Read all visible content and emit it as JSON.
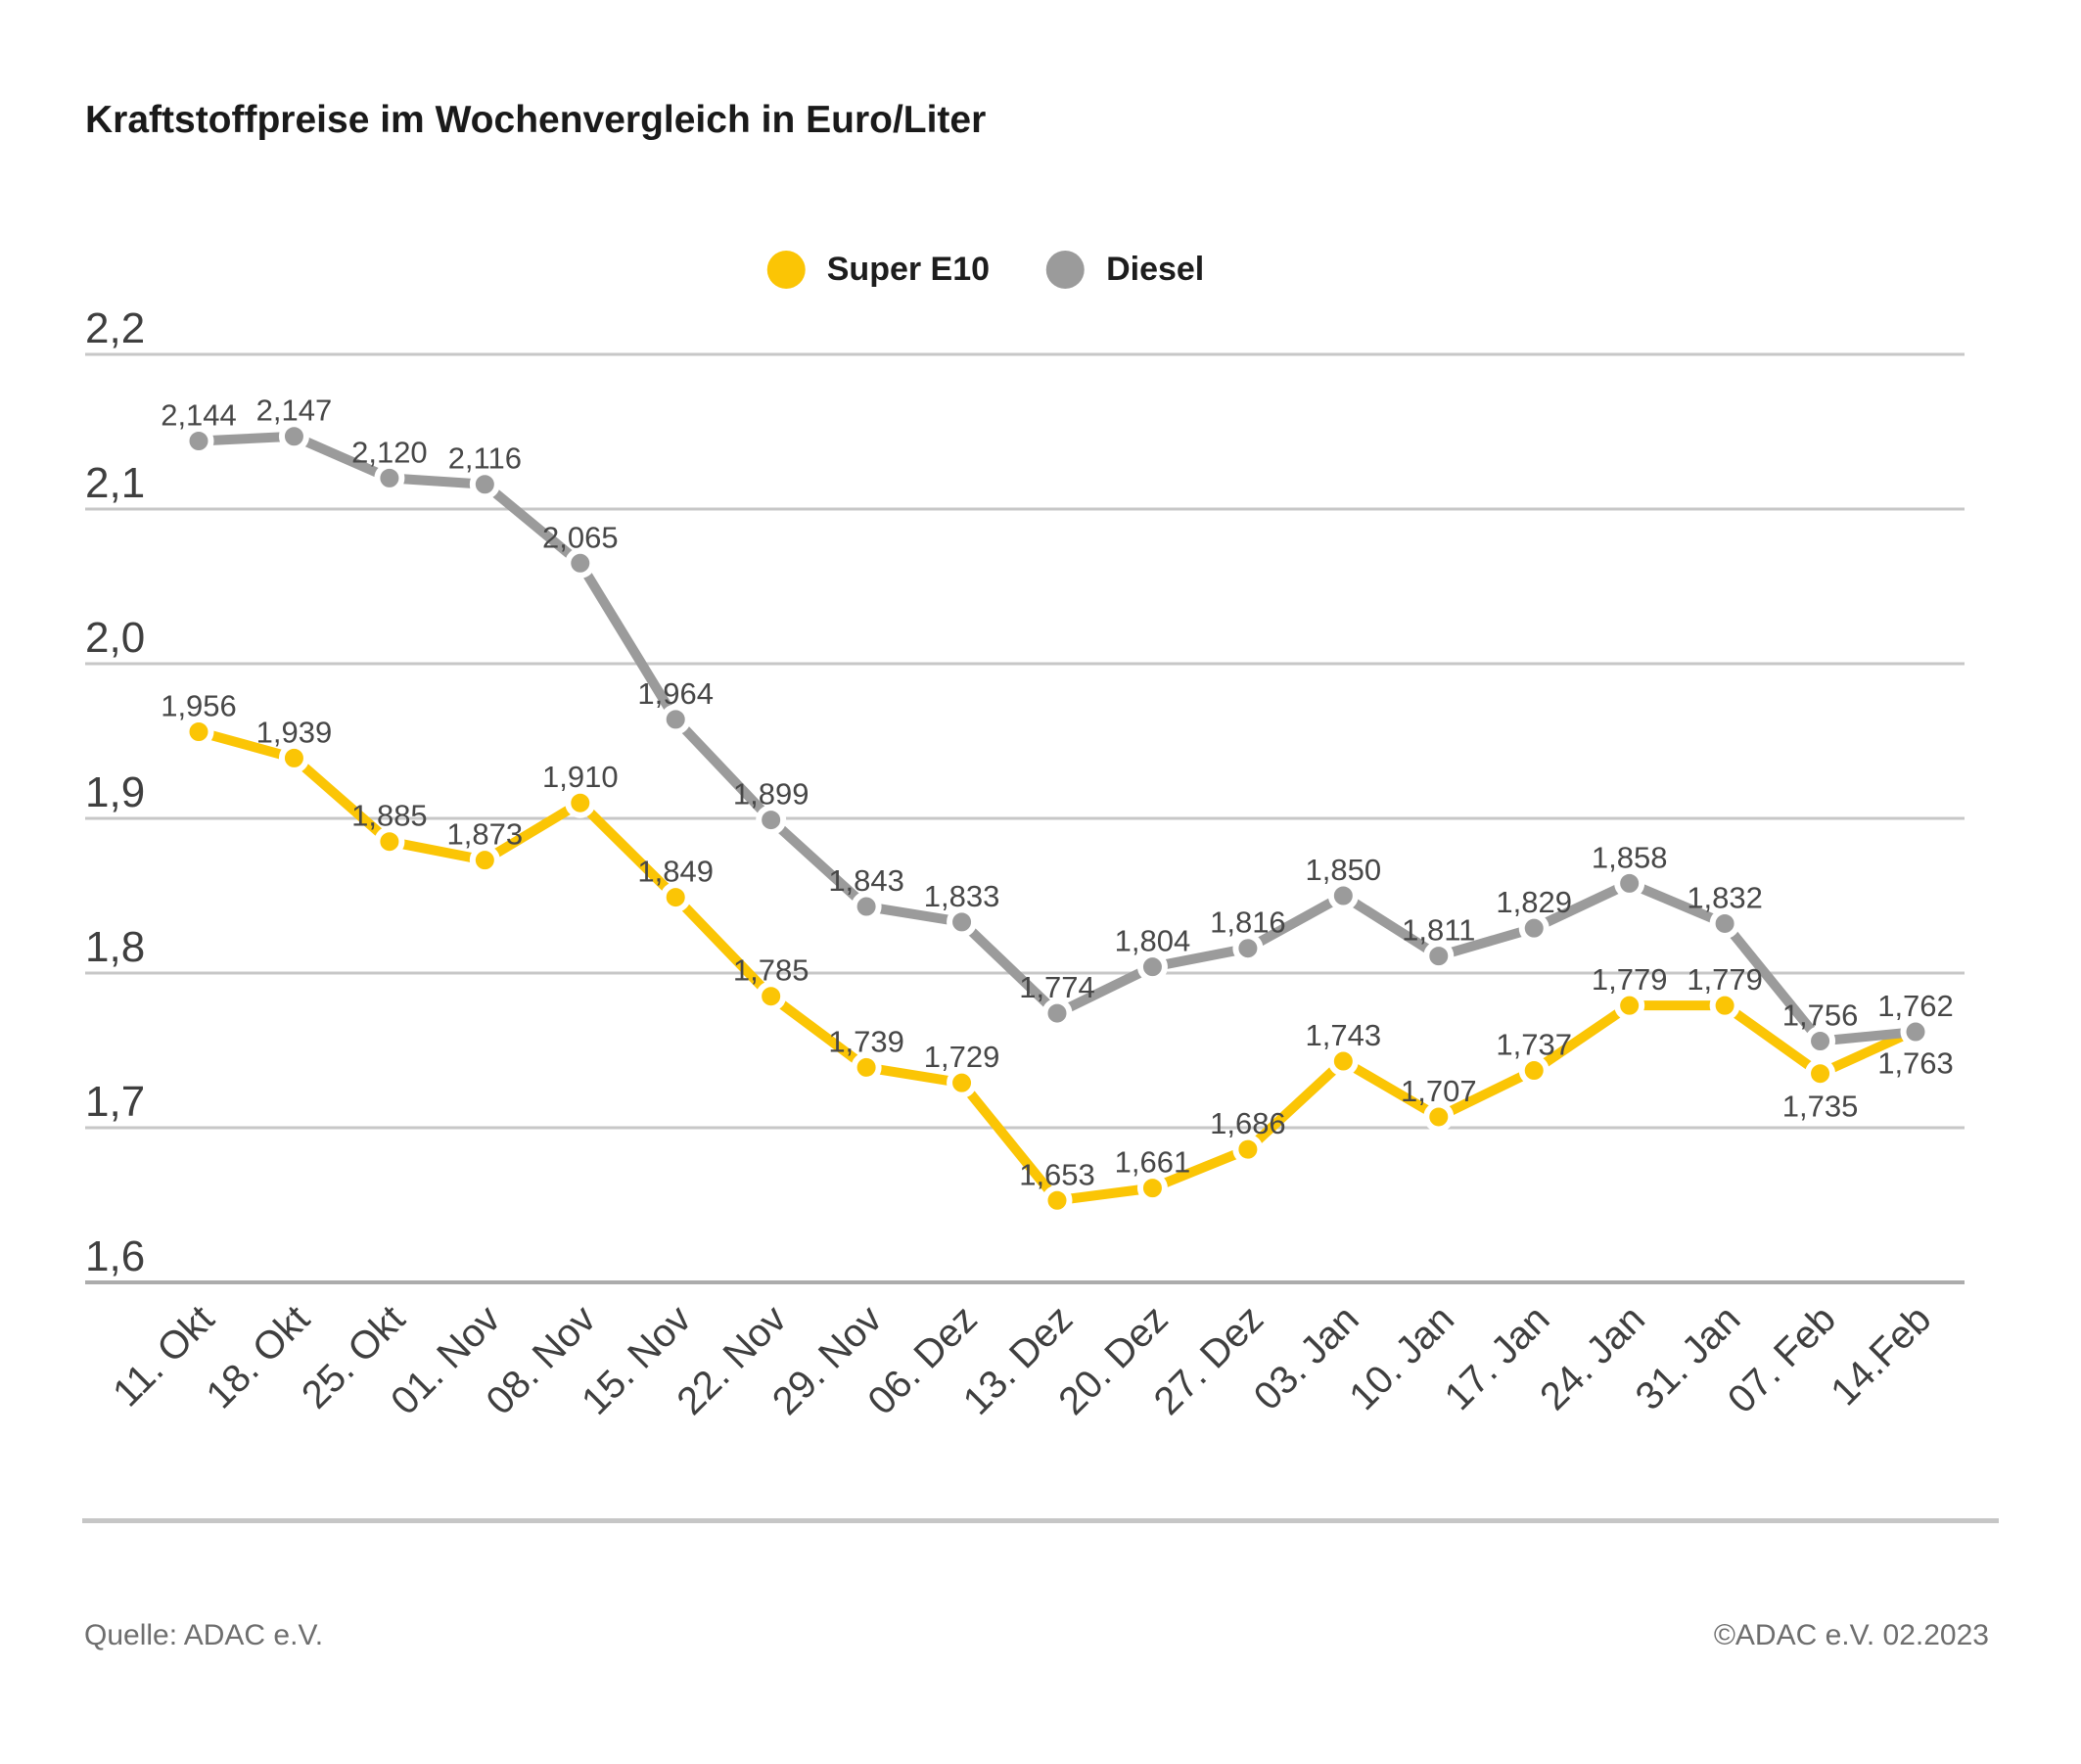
{
  "page": {
    "title": "Kraftstoffpreise im Wochenvergleich in Euro/Liter"
  },
  "legend": {
    "items": [
      {
        "label": "Super E10",
        "color": "#fbc505"
      },
      {
        "label": "Diesel",
        "color": "#9b9b9b"
      }
    ]
  },
  "footer": {
    "source": "Quelle: ADAC e.V.",
    "copyright": "©ADAC e.V. 02.2023"
  },
  "chart_data": {
    "type": "line",
    "title": "Kraftstoffpreise im Wochenvergleich in Euro/Liter",
    "unit": "Euro/Liter",
    "categories": [
      "11. Okt",
      "18. Okt",
      "25. Okt",
      "01. Nov",
      "08. Nov",
      "15. Nov",
      "22. Nov",
      "29. Nov",
      "06. Dez",
      "13. Dez",
      "20. Dez",
      "27. Dez",
      "03. Jan",
      "10. Jan",
      "17. Jan",
      "24. Jan",
      "31. Jan",
      "07. Feb",
      "14.Feb"
    ],
    "series": [
      {
        "name": "Super E10",
        "color": "#fbc505",
        "values": [
          1.956,
          1.939,
          1.885,
          1.873,
          1.91,
          1.849,
          1.785,
          1.739,
          1.729,
          1.653,
          1.661,
          1.686,
          1.743,
          1.707,
          1.737,
          1.779,
          1.779,
          1.735,
          1.763
        ],
        "labels_below": [
          17,
          18
        ]
      },
      {
        "name": "Diesel",
        "color": "#9b9b9b",
        "values": [
          2.144,
          2.147,
          2.12,
          2.116,
          2.065,
          1.964,
          1.899,
          1.843,
          1.833,
          1.774,
          1.804,
          1.816,
          1.85,
          1.811,
          1.829,
          1.858,
          1.832,
          1.756,
          1.762
        ],
        "labels_below": []
      }
    ],
    "ylim": [
      1.6,
      2.2
    ],
    "ytick_step": 0.1,
    "ytick_labels": [
      "2,2",
      "2,1",
      "2,0",
      "1,9",
      "1,8",
      "1,7",
      "1,6"
    ],
    "decimal": "comma",
    "grid": "horizontal",
    "legend_position": "top-center",
    "colors": {
      "grid_line": "#c7c7c7",
      "axis_line": "#acacac",
      "tick_label": "#3f3f3f",
      "point_label": "#474747"
    }
  }
}
